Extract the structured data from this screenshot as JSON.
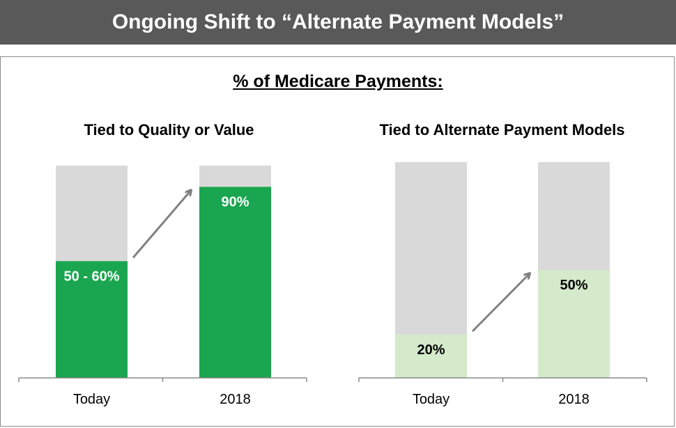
{
  "header": {
    "title": "Ongoing Shift to “Alternate Payment Models”"
  },
  "subtitle": "% of Medicare Payments:",
  "colors": {
    "banner": "#595959",
    "background_bar": "#d9d9d9",
    "quality_fill": "#1aa650",
    "apm_fill": "#d4eacb",
    "arrow": "#808080"
  },
  "chart_data": [
    {
      "type": "bar",
      "title": "Tied to Quality or Value",
      "categories": [
        "Today",
        "2018"
      ],
      "values": [
        55,
        90
      ],
      "value_labels": [
        "50 - 60%",
        "90%"
      ],
      "ylim": [
        0,
        100
      ],
      "stacked_total": 100,
      "grid": false,
      "label_color": "#ffffff"
    },
    {
      "type": "bar",
      "title": "Tied to Alternate Payment Models",
      "categories": [
        "Today",
        "2018"
      ],
      "values": [
        20,
        50
      ],
      "value_labels": [
        "20%",
        "50%"
      ],
      "ylim": [
        0,
        100
      ],
      "stacked_total": 100,
      "grid": false,
      "label_color": "#000000"
    }
  ]
}
